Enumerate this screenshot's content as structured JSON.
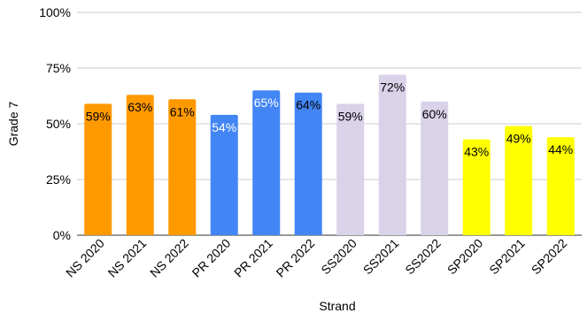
{
  "chart_data": {
    "type": "bar",
    "xlabel": "Strand",
    "ylabel": "Grade 7",
    "ylim": [
      0,
      100
    ],
    "yticks": [
      0,
      25,
      50,
      75,
      100
    ],
    "ytick_labels": [
      "0%",
      "25%",
      "50%",
      "75%",
      "100%"
    ],
    "grid": true,
    "categories": [
      "NS 2020",
      "NS 2021",
      "NS 2022",
      "PR 2020",
      "PR 2021",
      "PR 2022",
      "SS2020",
      "SS2021",
      "SS2022",
      "SP2020",
      "SP2021",
      "SP2022"
    ],
    "values": [
      59,
      63,
      61,
      54,
      65,
      64,
      59,
      72,
      60,
      43,
      49,
      44
    ],
    "data_labels": [
      "59%",
      "63%",
      "61%",
      "54%",
      "65%",
      "64%",
      "59%",
      "72%",
      "60%",
      "43%",
      "49%",
      "44%"
    ],
    "colors": [
      "#ff9900",
      "#ff9900",
      "#ff9900",
      "#4285f4",
      "#4285f4",
      "#4285f4",
      "#d9d2e9",
      "#d9d2e9",
      "#d9d2e9",
      "#ffff00",
      "#ffff00",
      "#ffff00"
    ],
    "label_colors": [
      "#000000",
      "#000000",
      "#000000",
      "#ffffff",
      "#ffffff",
      "#000000",
      "#000000",
      "#000000",
      "#000000",
      "#000000",
      "#000000",
      "#000000"
    ]
  }
}
